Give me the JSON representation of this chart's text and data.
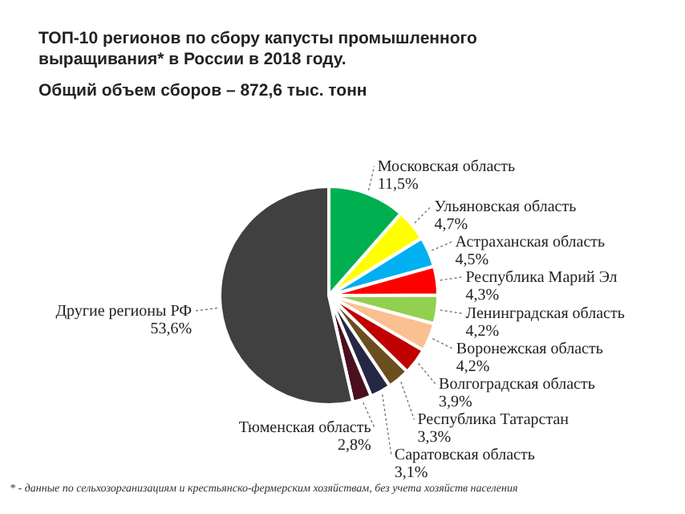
{
  "chart_data": {
    "type": "pie",
    "title": "ТОП-10 регионов по сбору капусты промышленного выращивания* в России в 2018 году.",
    "subtitle": "Общий объем сборов – 872,6 тыс. тонн",
    "categories": [
      "Московская область",
      "Ульяновская область",
      "Астраханская область",
      "Республика Марий Эл",
      "Ленинградская область",
      "Воронежская область",
      "Волгоградская область",
      "Республика Татарстан",
      "Саратовская область",
      "Тюменская область",
      "Другие регионы РФ"
    ],
    "values": [
      11.5,
      4.7,
      4.5,
      4.3,
      4.2,
      4.2,
      3.9,
      3.3,
      3.1,
      2.8,
      53.6
    ],
    "value_labels": [
      "11,5%",
      "4,7%",
      "4,5%",
      "4,3%",
      "4,2%",
      "4,2%",
      "3,9%",
      "3,3%",
      "3,1%",
      "2,8%",
      "53,6%"
    ],
    "colors": [
      "#00b050",
      "#ffff00",
      "#00b0f0",
      "#ff0000",
      "#92d050",
      "#fac090",
      "#c00000",
      "#6b4e1f",
      "#262645",
      "#4a1020",
      "#404040"
    ],
    "annotations": [
      "* - данные по сельхозорганизациям и крестьянско-фермерским  хозяйствам, без учета хозяйств населения"
    ]
  }
}
